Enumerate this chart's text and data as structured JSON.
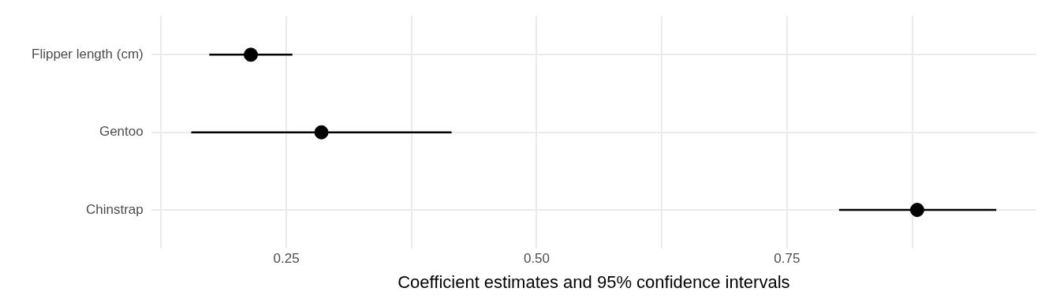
{
  "chart_data": {
    "type": "scatter",
    "orientation": "horizontal",
    "xlabel": "Coefficient estimates and 95% confidence intervals",
    "categories": [
      "Flipper length (cm)",
      "Gentoo",
      "Chinstrap"
    ],
    "values": [
      0.2145,
      0.285,
      0.88
    ],
    "errors": [
      [
        0.173,
        0.256
      ],
      [
        0.155,
        0.415
      ],
      [
        0.802,
        0.959
      ]
    ],
    "color": "#000000",
    "marker": "circle",
    "grid": true,
    "legend": false,
    "xlim": [
      0.115,
      0.999
    ],
    "xticks": [
      {
        "value": 0.125,
        "label": null
      },
      {
        "value": 0.25,
        "label": "0.25"
      },
      {
        "value": 0.375,
        "label": null
      },
      {
        "value": 0.5,
        "label": "0.50"
      },
      {
        "value": 0.625,
        "label": null
      },
      {
        "value": 0.75,
        "label": "0.75"
      },
      {
        "value": 0.875,
        "label": null
      }
    ]
  }
}
